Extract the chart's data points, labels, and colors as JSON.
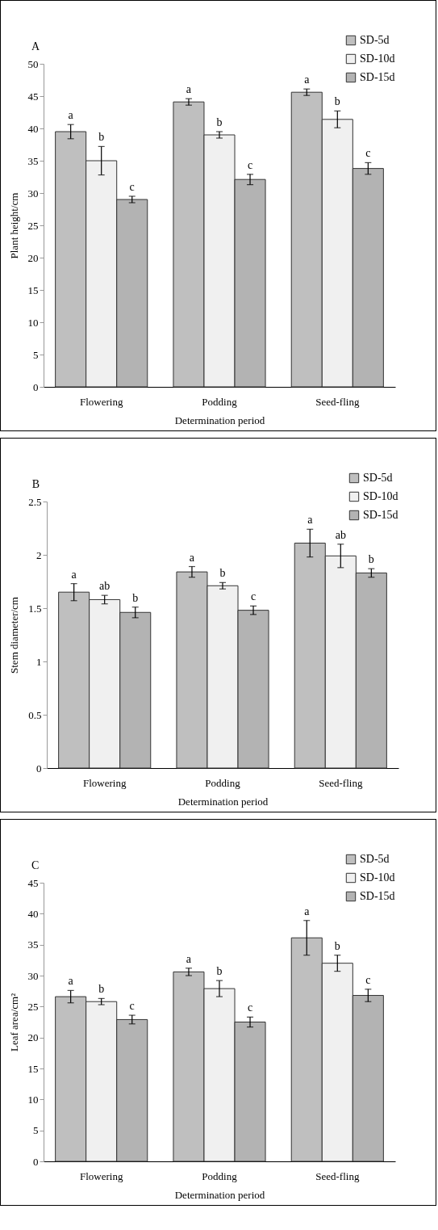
{
  "chart_data": [
    {
      "type": "bar",
      "title": "A",
      "xlabel": "Determination period",
      "ylabel": "Plant height/cm",
      "categories": [
        "Flowering",
        "Podding",
        "Seed-fling"
      ],
      "series": [
        {
          "name": "SD-5d",
          "color": "#bfbfbf",
          "values": [
            39.5,
            44.1,
            45.6
          ],
          "errors": [
            1.1,
            0.5,
            0.5
          ],
          "value_labels": [
            "a",
            "a",
            "a"
          ]
        },
        {
          "name": "SD-10d",
          "color": "#f0f0f0",
          "values": [
            35,
            39,
            41.4
          ],
          "errors": [
            2.2,
            0.5,
            1.3
          ],
          "value_labels": [
            "b",
            "b",
            "b"
          ]
        },
        {
          "name": "SD-15d",
          "color": "#b3b3b3",
          "values": [
            29,
            32.1,
            33.8
          ],
          "errors": [
            0.5,
            0.8,
            0.9
          ],
          "value_labels": [
            "c",
            "c",
            "c"
          ]
        }
      ],
      "ylim": [
        0,
        50
      ],
      "yticks": [
        0,
        5,
        10,
        15,
        20,
        25,
        30,
        35,
        40,
        45,
        50
      ],
      "grid": false,
      "legend": "top right"
    },
    {
      "type": "bar",
      "title": "B",
      "xlabel": "Determination period",
      "ylabel": "Stem diameter/cm",
      "categories": [
        "Flowering",
        "Podding",
        "Seed-fling"
      ],
      "series": [
        {
          "name": "SD-5d",
          "color": "#bfbfbf",
          "values": [
            1.65,
            1.84,
            2.11
          ],
          "errors": [
            0.08,
            0.05,
            0.13
          ],
          "value_labels": [
            "a",
            "a",
            "a"
          ]
        },
        {
          "name": "SD-10d",
          "color": "#f0f0f0",
          "values": [
            1.58,
            1.71,
            1.99
          ],
          "errors": [
            0.04,
            0.03,
            0.11
          ],
          "value_labels": [
            "ab",
            "b",
            "ab"
          ]
        },
        {
          "name": "SD-15d",
          "color": "#b3b3b3",
          "values": [
            1.46,
            1.48,
            1.83
          ],
          "errors": [
            0.05,
            0.04,
            0.04
          ],
          "value_labels": [
            "b",
            "c",
            "b"
          ]
        }
      ],
      "ylim": [
        0,
        2.5
      ],
      "yticks": [
        0,
        0.5,
        1,
        1.5,
        2,
        2.5
      ],
      "grid": false,
      "legend": "top right"
    },
    {
      "type": "bar",
      "title": "C",
      "xlabel": "Determination period",
      "ylabel": "Leaf area/cm²",
      "categories": [
        "Flowering",
        "Podding",
        "Seed-fling"
      ],
      "series": [
        {
          "name": "SD-5d",
          "color": "#bfbfbf",
          "values": [
            26.6,
            30.6,
            36.1
          ],
          "errors": [
            1.0,
            0.6,
            2.8
          ],
          "value_labels": [
            "a",
            "a",
            "a"
          ]
        },
        {
          "name": "SD-10d",
          "color": "#f0f0f0",
          "values": [
            25.8,
            27.9,
            32.0
          ],
          "errors": [
            0.5,
            1.3,
            1.3
          ],
          "value_labels": [
            "b",
            "b",
            "b"
          ]
        },
        {
          "name": "SD-15d",
          "color": "#b3b3b3",
          "values": [
            22.9,
            22.5,
            26.8
          ],
          "errors": [
            0.7,
            0.8,
            1.0
          ],
          "value_labels": [
            "c",
            "c",
            "c"
          ]
        }
      ],
      "ylim": [
        0,
        45
      ],
      "yticks": [
        0,
        5,
        10,
        15,
        20,
        25,
        30,
        35,
        40,
        45
      ],
      "grid": false,
      "legend": "top right"
    }
  ]
}
